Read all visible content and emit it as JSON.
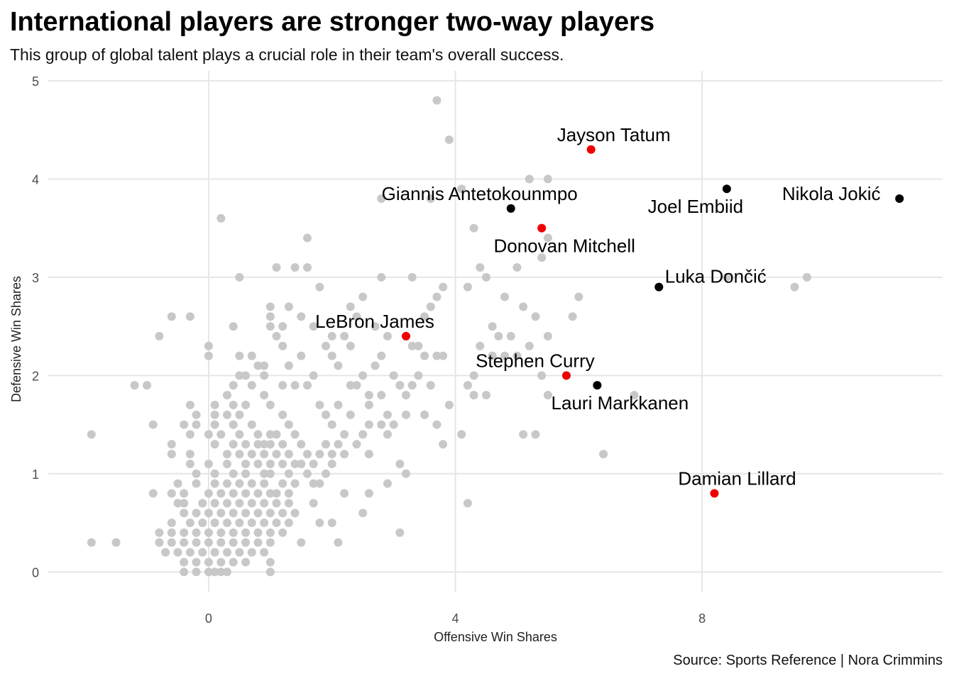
{
  "title": "International players are stronger two-way players",
  "subtitle": "This group of global talent plays a crucial role in their team's overall success.",
  "caption": "Source: Sports Reference | Nora Crimmins",
  "chart_data": {
    "type": "scatter",
    "xlabel": "Offensive Win Shares",
    "ylabel": "Defensive Win Shares",
    "xlim": [
      -2.6,
      11.9
    ],
    "ylim": [
      -0.2,
      5.1
    ],
    "x_ticks": [
      0,
      4,
      8
    ],
    "y_ticks": [
      0,
      1,
      2,
      3,
      4,
      5
    ],
    "grid": true,
    "colors": {
      "other": "#c8c8c8",
      "red": "#ee0000",
      "black": "#000000",
      "grid": "#e6e6e6"
    },
    "labeled_points": [
      {
        "label": "Jayson Tatum",
        "x": 6.2,
        "y": 4.3,
        "group": "red"
      },
      {
        "label": "Giannis Antetokounmpo",
        "x": 4.9,
        "y": 3.7,
        "group": "black"
      },
      {
        "label": "Joel Embiid",
        "x": 8.4,
        "y": 3.9,
        "group": "black"
      },
      {
        "label": "Nikola Jokić",
        "x": 11.2,
        "y": 3.8,
        "group": "black"
      },
      {
        "label": "Donovan Mitchell",
        "x": 5.4,
        "y": 3.5,
        "group": "red"
      },
      {
        "label": "Luka Dončić",
        "x": 7.3,
        "y": 2.9,
        "group": "black"
      },
      {
        "label": "LeBron James",
        "x": 3.2,
        "y": 2.4,
        "group": "red"
      },
      {
        "label": "Stephen Curry",
        "x": 5.8,
        "y": 2.0,
        "group": "red"
      },
      {
        "label": "Lauri Markkanen",
        "x": 6.3,
        "y": 1.9,
        "group": "black"
      },
      {
        "label": "Damian Lillard",
        "x": 8.2,
        "y": 0.8,
        "group": "red"
      }
    ],
    "other_points": [
      [
        3.7,
        4.8
      ],
      [
        3.9,
        4.4
      ],
      [
        5.2,
        4.0
      ],
      [
        5.5,
        4.0
      ],
      [
        4.1,
        3.9
      ],
      [
        3.6,
        3.8
      ],
      [
        2.8,
        3.8
      ],
      [
        0.2,
        3.6
      ],
      [
        4.3,
        3.5
      ],
      [
        5.5,
        3.4
      ],
      [
        1.6,
        3.4
      ],
      [
        5.4,
        3.2
      ],
      [
        4.4,
        3.1
      ],
      [
        5.0,
        3.1
      ],
      [
        1.1,
        3.1
      ],
      [
        1.4,
        3.1
      ],
      [
        1.6,
        3.1
      ],
      [
        4.5,
        3.0
      ],
      [
        2.8,
        3.0
      ],
      [
        3.3,
        3.0
      ],
      [
        0.5,
        3.0
      ],
      [
        8.4,
        3.0
      ],
      [
        9.7,
        3.0
      ],
      [
        9.5,
        2.9
      ],
      [
        1.8,
        2.9
      ],
      [
        3.8,
        2.9
      ],
      [
        4.2,
        2.9
      ],
      [
        3.7,
        2.8
      ],
      [
        2.5,
        2.8
      ],
      [
        4.8,
        2.8
      ],
      [
        6.0,
        2.8
      ],
      [
        1.3,
        2.7
      ],
      [
        1.0,
        2.7
      ],
      [
        2.3,
        2.7
      ],
      [
        3.6,
        2.7
      ],
      [
        5.1,
        2.7
      ],
      [
        -0.6,
        2.6
      ],
      [
        -0.3,
        2.6
      ],
      [
        1.0,
        2.6
      ],
      [
        1.5,
        2.6
      ],
      [
        2.4,
        2.6
      ],
      [
        3.5,
        2.6
      ],
      [
        5.3,
        2.6
      ],
      [
        5.9,
        2.6
      ],
      [
        0.4,
        2.5
      ],
      [
        1.0,
        2.5
      ],
      [
        1.2,
        2.5
      ],
      [
        1.7,
        2.5
      ],
      [
        2.7,
        2.5
      ],
      [
        4.6,
        2.5
      ],
      [
        -0.8,
        2.4
      ],
      [
        1.1,
        2.4
      ],
      [
        2.0,
        2.4
      ],
      [
        2.2,
        2.4
      ],
      [
        2.9,
        2.4
      ],
      [
        4.7,
        2.4
      ],
      [
        4.9,
        2.4
      ],
      [
        5.5,
        2.4
      ],
      [
        1.2,
        2.3
      ],
      [
        0.0,
        2.3
      ],
      [
        1.9,
        2.3
      ],
      [
        2.3,
        2.3
      ],
      [
        3.3,
        2.3
      ],
      [
        3.4,
        2.3
      ],
      [
        4.4,
        2.3
      ],
      [
        5.2,
        2.3
      ],
      [
        0.0,
        2.2
      ],
      [
        0.5,
        2.2
      ],
      [
        0.7,
        2.2
      ],
      [
        1.5,
        2.2
      ],
      [
        2.0,
        2.2
      ],
      [
        2.8,
        2.2
      ],
      [
        3.5,
        2.2
      ],
      [
        3.7,
        2.2
      ],
      [
        3.8,
        2.2
      ],
      [
        4.6,
        2.2
      ],
      [
        4.8,
        2.2
      ],
      [
        5.0,
        2.2
      ],
      [
        0.8,
        2.1
      ],
      [
        0.9,
        2.1
      ],
      [
        1.3,
        2.1
      ],
      [
        2.1,
        2.1
      ],
      [
        2.7,
        2.1
      ],
      [
        0.5,
        2.0
      ],
      [
        0.6,
        2.0
      ],
      [
        0.9,
        2.0
      ],
      [
        1.7,
        2.0
      ],
      [
        2.5,
        2.0
      ],
      [
        3.0,
        2.0
      ],
      [
        3.4,
        2.0
      ],
      [
        4.3,
        2.0
      ],
      [
        5.4,
        2.0
      ],
      [
        -1.2,
        1.9
      ],
      [
        -1.0,
        1.9
      ],
      [
        0.4,
        1.9
      ],
      [
        0.7,
        1.9
      ],
      [
        1.2,
        1.9
      ],
      [
        1.4,
        1.9
      ],
      [
        1.6,
        1.9
      ],
      [
        2.3,
        1.9
      ],
      [
        2.4,
        1.9
      ],
      [
        3.1,
        1.9
      ],
      [
        3.3,
        1.9
      ],
      [
        3.6,
        1.9
      ],
      [
        4.2,
        1.9
      ],
      [
        0.3,
        1.8
      ],
      [
        0.9,
        1.8
      ],
      [
        2.6,
        1.8
      ],
      [
        2.8,
        1.8
      ],
      [
        3.2,
        1.8
      ],
      [
        4.3,
        1.8
      ],
      [
        4.5,
        1.8
      ],
      [
        5.5,
        1.8
      ],
      [
        6.9,
        1.8
      ],
      [
        -0.3,
        1.7
      ],
      [
        0.1,
        1.7
      ],
      [
        0.6,
        1.7
      ],
      [
        0.4,
        1.7
      ],
      [
        1.0,
        1.7
      ],
      [
        1.8,
        1.7
      ],
      [
        2.1,
        1.7
      ],
      [
        2.6,
        1.7
      ],
      [
        3.9,
        1.7
      ],
      [
        -0.2,
        1.6
      ],
      [
        0.1,
        1.6
      ],
      [
        0.3,
        1.6
      ],
      [
        0.5,
        1.6
      ],
      [
        1.2,
        1.6
      ],
      [
        1.9,
        1.6
      ],
      [
        2.3,
        1.6
      ],
      [
        2.9,
        1.6
      ],
      [
        3.2,
        1.6
      ],
      [
        3.5,
        1.6
      ],
      [
        -0.9,
        1.5
      ],
      [
        -0.4,
        1.5
      ],
      [
        -0.2,
        1.5
      ],
      [
        0.1,
        1.5
      ],
      [
        0.4,
        1.5
      ],
      [
        0.7,
        1.5
      ],
      [
        1.3,
        1.5
      ],
      [
        2.0,
        1.5
      ],
      [
        2.6,
        1.5
      ],
      [
        2.8,
        1.5
      ],
      [
        3.0,
        1.5
      ],
      [
        3.7,
        1.5
      ],
      [
        -1.9,
        1.4
      ],
      [
        -0.3,
        1.4
      ],
      [
        0.0,
        1.4
      ],
      [
        0.2,
        1.4
      ],
      [
        0.5,
        1.4
      ],
      [
        0.8,
        1.4
      ],
      [
        1.0,
        1.4
      ],
      [
        1.1,
        1.4
      ],
      [
        1.4,
        1.4
      ],
      [
        2.2,
        1.4
      ],
      [
        2.5,
        1.4
      ],
      [
        2.9,
        1.4
      ],
      [
        4.1,
        1.4
      ],
      [
        5.1,
        1.4
      ],
      [
        5.3,
        1.4
      ],
      [
        -0.6,
        1.3
      ],
      [
        0.1,
        1.3
      ],
      [
        0.4,
        1.3
      ],
      [
        0.6,
        1.3
      ],
      [
        0.8,
        1.3
      ],
      [
        0.9,
        1.3
      ],
      [
        1.0,
        1.3
      ],
      [
        1.2,
        1.3
      ],
      [
        1.5,
        1.3
      ],
      [
        1.9,
        1.3
      ],
      [
        2.1,
        1.3
      ],
      [
        2.4,
        1.3
      ],
      [
        3.8,
        1.3
      ],
      [
        -0.6,
        1.2
      ],
      [
        -0.3,
        1.2
      ],
      [
        0.3,
        1.2
      ],
      [
        0.5,
        1.2
      ],
      [
        0.7,
        1.2
      ],
      [
        0.9,
        1.2
      ],
      [
        1.1,
        1.2
      ],
      [
        1.3,
        1.2
      ],
      [
        1.6,
        1.2
      ],
      [
        1.8,
        1.2
      ],
      [
        2.0,
        1.2
      ],
      [
        2.2,
        1.2
      ],
      [
        2.6,
        1.2
      ],
      [
        6.4,
        1.2
      ],
      [
        -0.3,
        1.1
      ],
      [
        0.0,
        1.1
      ],
      [
        0.3,
        1.1
      ],
      [
        0.6,
        1.1
      ],
      [
        0.8,
        1.1
      ],
      [
        1.0,
        1.1
      ],
      [
        1.2,
        1.1
      ],
      [
        1.4,
        1.1
      ],
      [
        1.5,
        1.1
      ],
      [
        1.7,
        1.1
      ],
      [
        2.0,
        1.1
      ],
      [
        3.1,
        1.1
      ],
      [
        -0.2,
        1.0
      ],
      [
        0.1,
        1.0
      ],
      [
        0.4,
        1.0
      ],
      [
        0.6,
        1.0
      ],
      [
        0.9,
        1.0
      ],
      [
        1.0,
        1.0
      ],
      [
        1.3,
        1.0
      ],
      [
        1.6,
        1.0
      ],
      [
        1.9,
        1.0
      ],
      [
        3.2,
        1.0
      ],
      [
        -0.5,
        0.9
      ],
      [
        -0.2,
        0.9
      ],
      [
        0.1,
        0.9
      ],
      [
        0.3,
        0.9
      ],
      [
        0.5,
        0.9
      ],
      [
        0.7,
        0.9
      ],
      [
        0.9,
        0.9
      ],
      [
        1.2,
        0.9
      ],
      [
        1.4,
        0.9
      ],
      [
        1.7,
        0.9
      ],
      [
        1.8,
        0.9
      ],
      [
        2.9,
        0.9
      ],
      [
        -0.9,
        0.8
      ],
      [
        -0.6,
        0.8
      ],
      [
        -0.4,
        0.8
      ],
      [
        0.0,
        0.8
      ],
      [
        0.2,
        0.8
      ],
      [
        0.4,
        0.8
      ],
      [
        0.6,
        0.8
      ],
      [
        0.8,
        0.8
      ],
      [
        1.0,
        0.8
      ],
      [
        1.1,
        0.8
      ],
      [
        1.3,
        0.8
      ],
      [
        2.2,
        0.8
      ],
      [
        2.6,
        0.8
      ],
      [
        -0.5,
        0.7
      ],
      [
        -0.4,
        0.7
      ],
      [
        -0.1,
        0.7
      ],
      [
        0.1,
        0.7
      ],
      [
        0.3,
        0.7
      ],
      [
        0.5,
        0.7
      ],
      [
        0.7,
        0.7
      ],
      [
        0.9,
        0.7
      ],
      [
        1.1,
        0.7
      ],
      [
        1.3,
        0.7
      ],
      [
        1.7,
        0.7
      ],
      [
        4.2,
        0.7
      ],
      [
        -0.4,
        0.6
      ],
      [
        -0.2,
        0.6
      ],
      [
        0.0,
        0.6
      ],
      [
        0.2,
        0.6
      ],
      [
        0.4,
        0.6
      ],
      [
        0.6,
        0.6
      ],
      [
        0.8,
        0.6
      ],
      [
        1.0,
        0.6
      ],
      [
        1.2,
        0.6
      ],
      [
        1.4,
        0.6
      ],
      [
        2.5,
        0.6
      ],
      [
        -0.6,
        0.5
      ],
      [
        -0.3,
        0.5
      ],
      [
        -0.1,
        0.5
      ],
      [
        0.1,
        0.5
      ],
      [
        0.3,
        0.5
      ],
      [
        0.5,
        0.5
      ],
      [
        0.7,
        0.5
      ],
      [
        0.9,
        0.5
      ],
      [
        1.1,
        0.5
      ],
      [
        1.3,
        0.5
      ],
      [
        1.8,
        0.5
      ],
      [
        2.0,
        0.5
      ],
      [
        -0.8,
        0.4
      ],
      [
        -0.6,
        0.4
      ],
      [
        -0.4,
        0.4
      ],
      [
        -0.2,
        0.4
      ],
      [
        0.0,
        0.4
      ],
      [
        0.2,
        0.4
      ],
      [
        0.4,
        0.4
      ],
      [
        0.6,
        0.4
      ],
      [
        0.8,
        0.4
      ],
      [
        1.0,
        0.4
      ],
      [
        1.2,
        0.4
      ],
      [
        3.1,
        0.4
      ],
      [
        -1.9,
        0.3
      ],
      [
        -1.5,
        0.3
      ],
      [
        -0.8,
        0.3
      ],
      [
        -0.6,
        0.3
      ],
      [
        -0.4,
        0.3
      ],
      [
        -0.2,
        0.3
      ],
      [
        0.0,
        0.3
      ],
      [
        0.2,
        0.3
      ],
      [
        0.4,
        0.3
      ],
      [
        0.6,
        0.3
      ],
      [
        0.8,
        0.3
      ],
      [
        1.0,
        0.3
      ],
      [
        1.5,
        0.3
      ],
      [
        2.1,
        0.3
      ],
      [
        -0.7,
        0.2
      ],
      [
        -0.5,
        0.2
      ],
      [
        -0.3,
        0.2
      ],
      [
        -0.1,
        0.2
      ],
      [
        0.1,
        0.2
      ],
      [
        0.3,
        0.2
      ],
      [
        0.5,
        0.2
      ],
      [
        0.7,
        0.2
      ],
      [
        0.9,
        0.2
      ],
      [
        -0.4,
        0.1
      ],
      [
        -0.2,
        0.1
      ],
      [
        0.0,
        0.1
      ],
      [
        0.2,
        0.1
      ],
      [
        0.4,
        0.1
      ],
      [
        0.6,
        0.1
      ],
      [
        1.0,
        0.1
      ],
      [
        -0.4,
        0.0
      ],
      [
        -0.2,
        0.0
      ],
      [
        0.0,
        0.0
      ],
      [
        0.1,
        0.0
      ],
      [
        0.2,
        0.0
      ],
      [
        0.3,
        0.0
      ],
      [
        1.0,
        0.0
      ]
    ]
  }
}
